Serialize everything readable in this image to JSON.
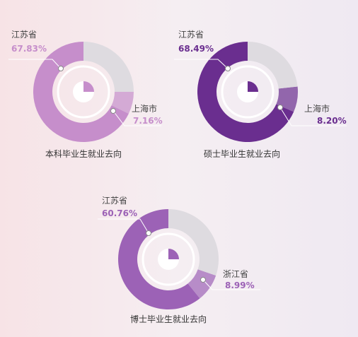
{
  "chart_data": [
    {
      "type": "pie",
      "title": "本科毕业生就业去向",
      "accent": "#c68ecb",
      "slices": [
        {
          "label": "江苏省",
          "value": 67.83,
          "display": "67.83%"
        },
        {
          "label": "上海市",
          "value": 7.16,
          "display": "7.16%"
        }
      ]
    },
    {
      "type": "pie",
      "title": "硕士毕业生就业去向",
      "accent": "#6a2e8f",
      "slices": [
        {
          "label": "江苏省",
          "value": 68.49,
          "display": "68.49%"
        },
        {
          "label": "上海市",
          "value": 8.2,
          "display": "8.20%"
        }
      ]
    },
    {
      "type": "pie",
      "title": "博士毕业生就业去向",
      "accent": "#9c62b6",
      "slices": [
        {
          "label": "江苏省",
          "value": 60.76,
          "display": "60.76%"
        },
        {
          "label": "浙江省",
          "value": 8.99,
          "display": "8.99%"
        }
      ]
    }
  ],
  "colors": {
    "rest": "#dedbe0",
    "center": "#ffffff"
  },
  "icons": [
    "pie-chart-icon"
  ]
}
